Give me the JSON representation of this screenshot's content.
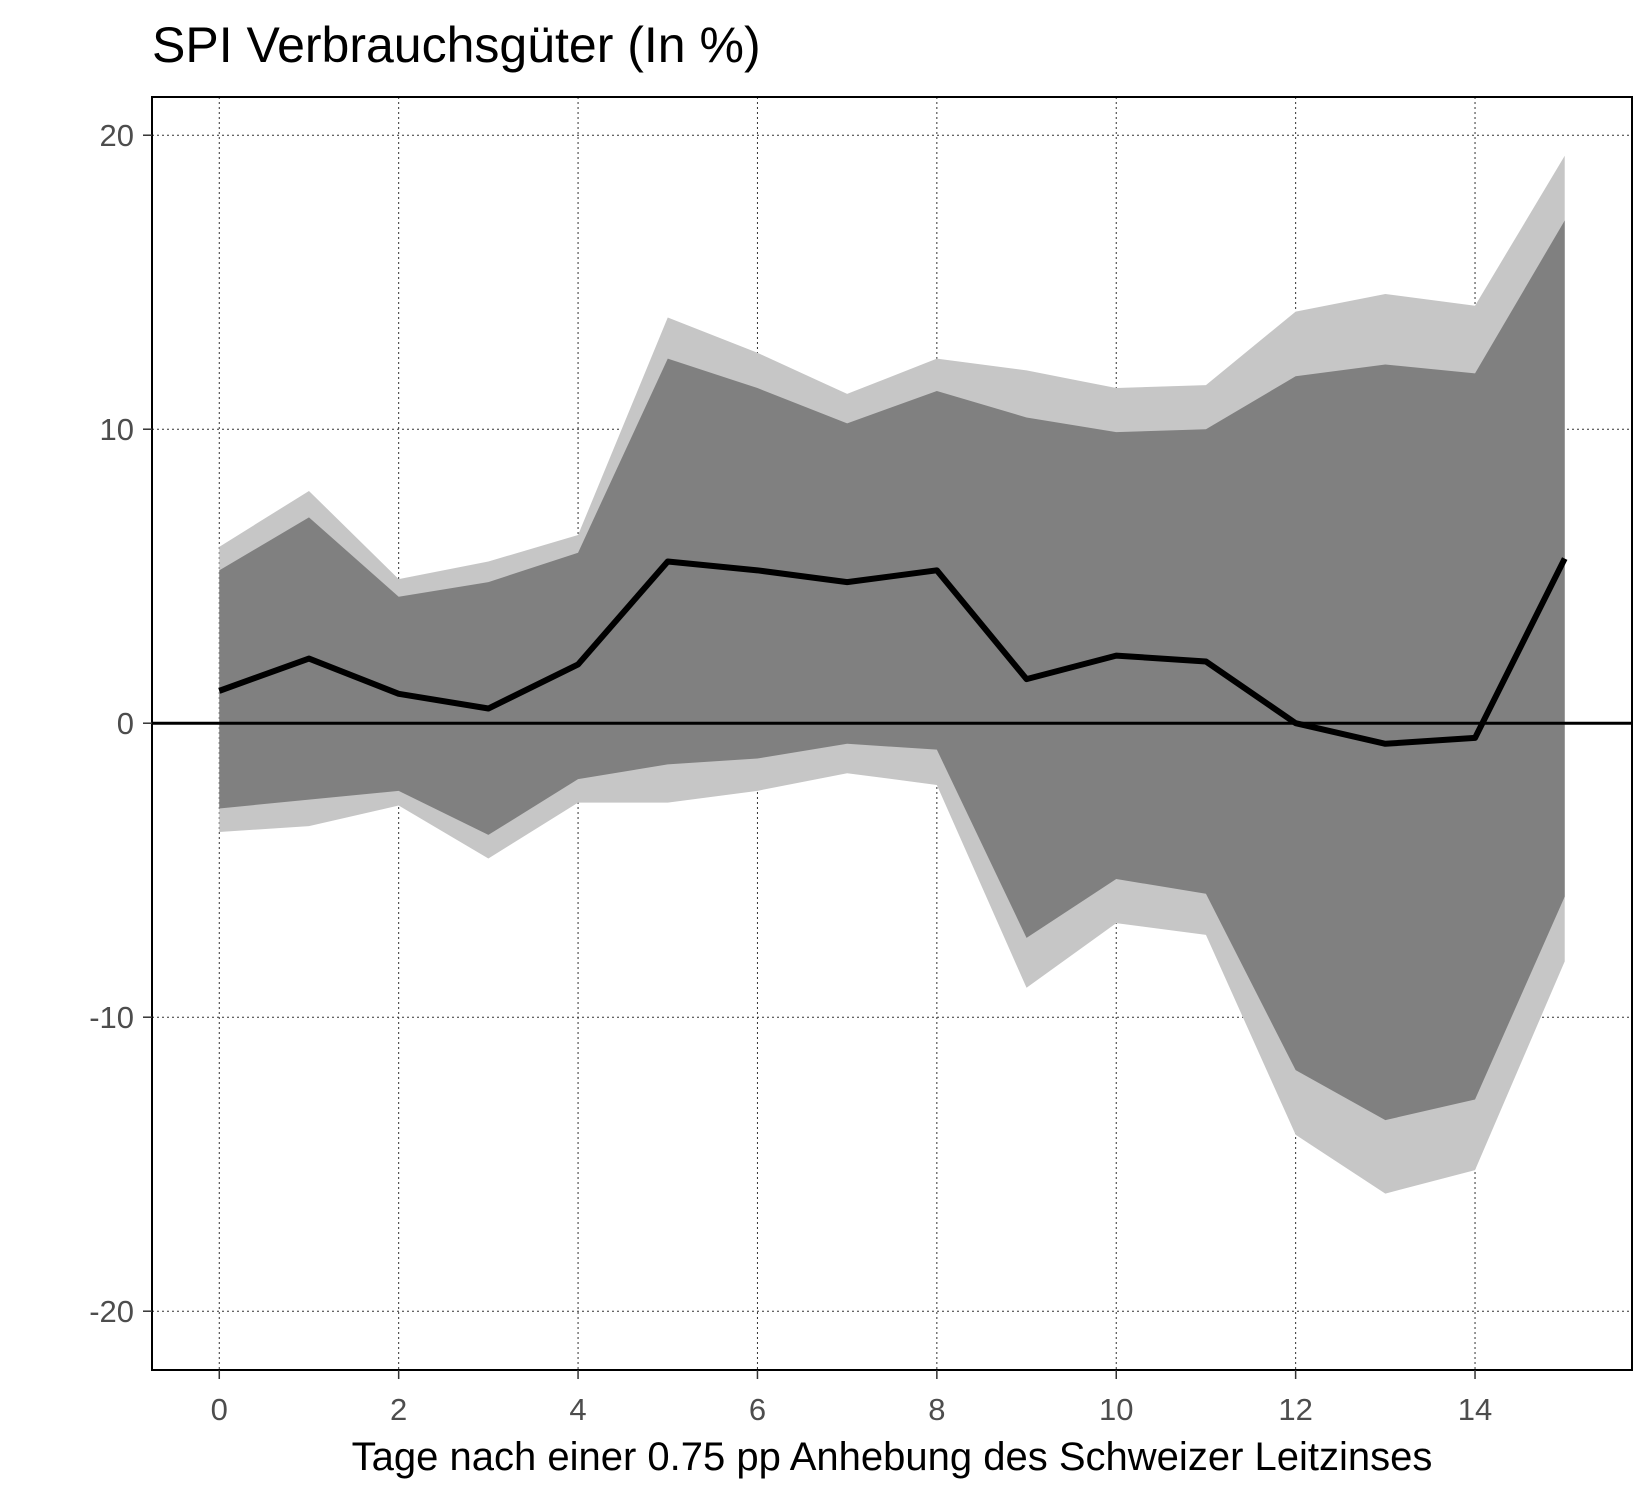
{
  "chart_data": {
    "type": "line",
    "title": "SPI Verbrauchsgüter (In %)",
    "xlabel": "Tage nach einer 0.75 pp Anhebung des Schweizer Leitzinses",
    "ylabel": "",
    "xlim": [
      -0.75,
      15.75
    ],
    "ylim": [
      -22,
      21.3
    ],
    "x_ticks": [
      0,
      2,
      4,
      6,
      8,
      10,
      12,
      14
    ],
    "y_ticks": [
      -20,
      -10,
      0,
      10,
      20
    ],
    "grid": true,
    "x": [
      0,
      1,
      2,
      3,
      4,
      5,
      6,
      7,
      8,
      9,
      10,
      11,
      12,
      13,
      14,
      15
    ],
    "series": [
      {
        "role": "point-estimate",
        "values": [
          1.1,
          2.2,
          1.0,
          0.5,
          2.0,
          5.5,
          5.2,
          4.8,
          5.2,
          1.5,
          2.3,
          2.1,
          0.0,
          -0.7,
          -0.5,
          5.6
        ],
        "color": "#000000"
      }
    ],
    "bands": [
      {
        "role": "outer-band",
        "upper": [
          6.0,
          7.9,
          4.9,
          5.5,
          6.4,
          13.8,
          12.6,
          11.2,
          12.4,
          12.0,
          11.4,
          11.5,
          14.0,
          14.6,
          14.2,
          19.3
        ],
        "lower": [
          -3.7,
          -3.5,
          -2.8,
          -4.6,
          -2.7,
          -2.7,
          -2.3,
          -1.7,
          -2.1,
          -9.0,
          -6.8,
          -7.2,
          -14.0,
          -16.0,
          -15.2,
          -8.1
        ],
        "color": "#c6c6c6"
      },
      {
        "role": "inner-band",
        "upper": [
          5.2,
          7.0,
          4.3,
          4.8,
          5.8,
          12.4,
          11.4,
          10.2,
          11.3,
          10.4,
          9.9,
          10.0,
          11.8,
          12.2,
          11.9,
          17.1
        ],
        "lower": [
          -2.9,
          -2.6,
          -2.3,
          -3.8,
          -1.9,
          -1.4,
          -1.2,
          -0.7,
          -0.9,
          -7.3,
          -5.3,
          -5.8,
          -11.8,
          -13.5,
          -12.8,
          -5.9
        ],
        "color": "#808080"
      }
    ]
  }
}
